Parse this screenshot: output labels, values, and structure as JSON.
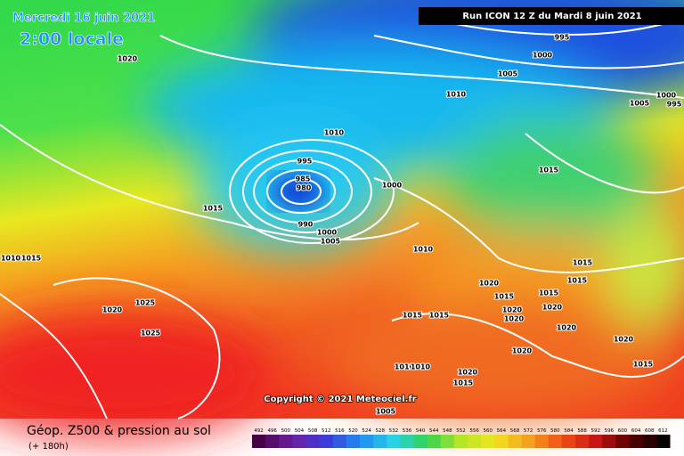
{
  "header": {
    "date": "Mercredi 16 juin 2021",
    "time": "2:00 locale",
    "run": "Run ICON 12 Z du Mardi 8 juin 2021"
  },
  "isobars": [
    1020,
    995,
    1000,
    1005,
    1010,
    1005,
    1000,
    995,
    1010,
    995,
    985,
    980,
    990,
    1000,
    1005,
    1000,
    1015,
    1015,
    1010,
    1015,
    1015,
    1020,
    1015,
    1015,
    1020,
    1020,
    1020,
    1015,
    1015,
    1020,
    1025,
    1025,
    1020,
    1020,
    1020,
    1010,
    1010,
    1020,
    1015,
    1015,
    1005,
    1010,
    1015
  ],
  "copyright": "Copyright © 2021 Meteociel.fr",
  "footer": {
    "title": "Géop. Z500 & pression au sol",
    "lead": "(+ 180h)"
  },
  "legend": {
    "labels": [
      492,
      496,
      500,
      504,
      508,
      512,
      516,
      520,
      524,
      528,
      532,
      536,
      540,
      544,
      548,
      552,
      556,
      560,
      564,
      568,
      572,
      576,
      580,
      584,
      588,
      592,
      596,
      600,
      604,
      608,
      612
    ]
  }
}
